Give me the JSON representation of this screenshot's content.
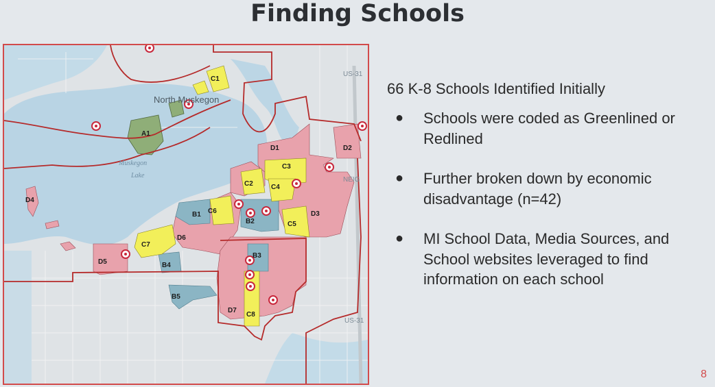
{
  "slide": {
    "title": "Finding Schools",
    "page_number": "8"
  },
  "content": {
    "intro": "66 K-8 Schools Identified Initially",
    "bullets": [
      "Schools were coded as Greenlined or Redlined",
      "Further broken down by economic disadvantage (n=42)",
      "MI School Data, Media Sources, and School websites leveraged to find information on each school"
    ]
  },
  "map": {
    "place_labels": {
      "north_muskegon": "North Muskegon",
      "lake_line1": "Muskegon",
      "lake_line2": "Lake",
      "neig": "NEIG",
      "route_top": "US-31",
      "route_bottom": "US-31"
    },
    "zone_labels": [
      "A1",
      "B1",
      "B2",
      "B3",
      "B4",
      "B5",
      "C1",
      "C2",
      "C3",
      "C4",
      "C5",
      "C6",
      "C7",
      "C8",
      "D1",
      "D2",
      "D3",
      "D4",
      "D5",
      "D6",
      "D7"
    ],
    "zone_colors": {
      "A": "#8fae78",
      "B": "#8bb5c4",
      "C": "#f2ef5a",
      "D": "#e8a2ac",
      "boundary": "#b52a2a",
      "school_marker": "#c8283c"
    }
  }
}
